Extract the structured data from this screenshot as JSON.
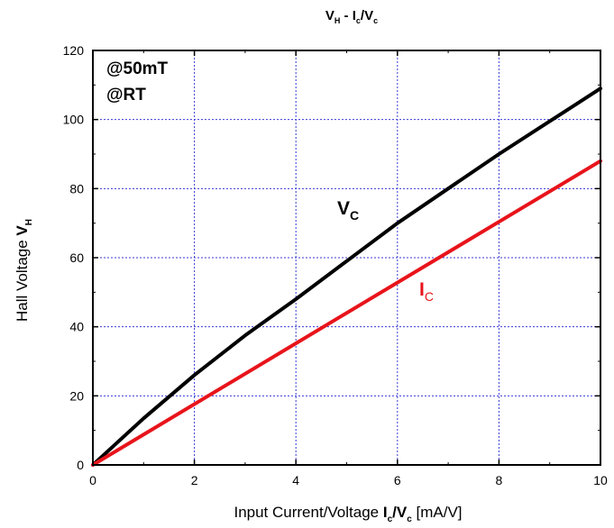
{
  "chart_data": {
    "type": "line",
    "title": {
      "main": "V",
      "main_sub": "H",
      "sep": " - I",
      "sep_sub": "c",
      "tail": "/V",
      "tail_sub": "c"
    },
    "xlabel": {
      "main": "Input Current/Voltage ",
      "bold1": "I",
      "bold1_sub": "c",
      "slash": "/",
      "bold2": "V",
      "bold2_sub": "c",
      "unit": "  [mA/V]"
    },
    "ylabel": {
      "main": "Hall Voltage ",
      "bold": "V",
      "bold_sub": "H"
    },
    "xlim": [
      0,
      10
    ],
    "ylim": [
      0,
      120
    ],
    "xticks": [
      "0",
      "2",
      "4",
      "6",
      "8",
      "10"
    ],
    "yticks": [
      "0",
      "20",
      "40",
      "60",
      "80",
      "100",
      "120"
    ],
    "grid": true,
    "annotations": [
      {
        "text": "@50mT"
      },
      {
        "text": "@RT"
      }
    ],
    "series": [
      {
        "name": "V_C",
        "label_main": "V",
        "label_sub": "C",
        "color": "#000000",
        "x": [
          0,
          1,
          2,
          3,
          4,
          5,
          6,
          7,
          8,
          9,
          10
        ],
        "y": [
          0,
          13.5,
          26,
          37.5,
          48,
          59,
          70,
          80,
          90,
          99.5,
          109
        ]
      },
      {
        "name": "I_C",
        "label_main": "I",
        "label_sub": "C",
        "color": "#e8141b",
        "x": [
          0,
          10
        ],
        "y": [
          0,
          88
        ]
      }
    ]
  }
}
